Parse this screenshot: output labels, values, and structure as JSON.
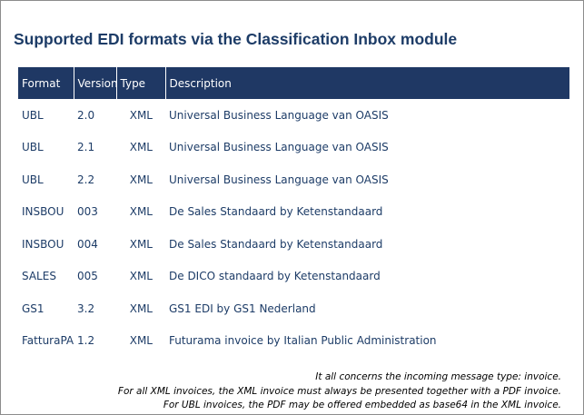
{
  "title": "Supported EDI formats via the Classification Inbox module",
  "table": {
    "headers": [
      "Format",
      "Version",
      "Type",
      "Description"
    ],
    "rows": [
      {
        "format": "UBL",
        "version": "2.0",
        "type": "XML",
        "description": "Universal Business Language van OASIS"
      },
      {
        "format": "UBL",
        "version": "2.1",
        "type": "XML",
        "description": "Universal Business Language van OASIS"
      },
      {
        "format": "UBL",
        "version": "2.2",
        "type": "XML",
        "description": "Universal Business Language van OASIS"
      },
      {
        "format": "INSBOU",
        "version": "003",
        "type": "XML",
        "description": "De Sales Standaard by Ketenstandaard"
      },
      {
        "format": "INSBOU",
        "version": "004",
        "type": "XML",
        "description": "De Sales Standaard by Ketenstandaard"
      },
      {
        "format": "SALES",
        "version": "005",
        "type": "XML",
        "description": "De DICO standaard by Ketenstandaard"
      },
      {
        "format": "GS1",
        "version": "3.2",
        "type": "XML",
        "description": "GS1 EDI by GS1 Nederland"
      },
      {
        "format": "FatturaPA",
        "version": "1.2",
        "type": "XML",
        "description": "Futurama invoice by Italian Public Administration"
      }
    ]
  },
  "footer_notes": [
    "It all concerns the incoming message type: invoice.",
    "For all XML invoices, the XML invoice must always be presented together with a PDF invoice.",
    "For UBL invoices, the PDF may be offered embedded as base64 in the XML invoice."
  ],
  "colors": {
    "header_bg": "#1f3864",
    "text": "#1d3c67"
  }
}
